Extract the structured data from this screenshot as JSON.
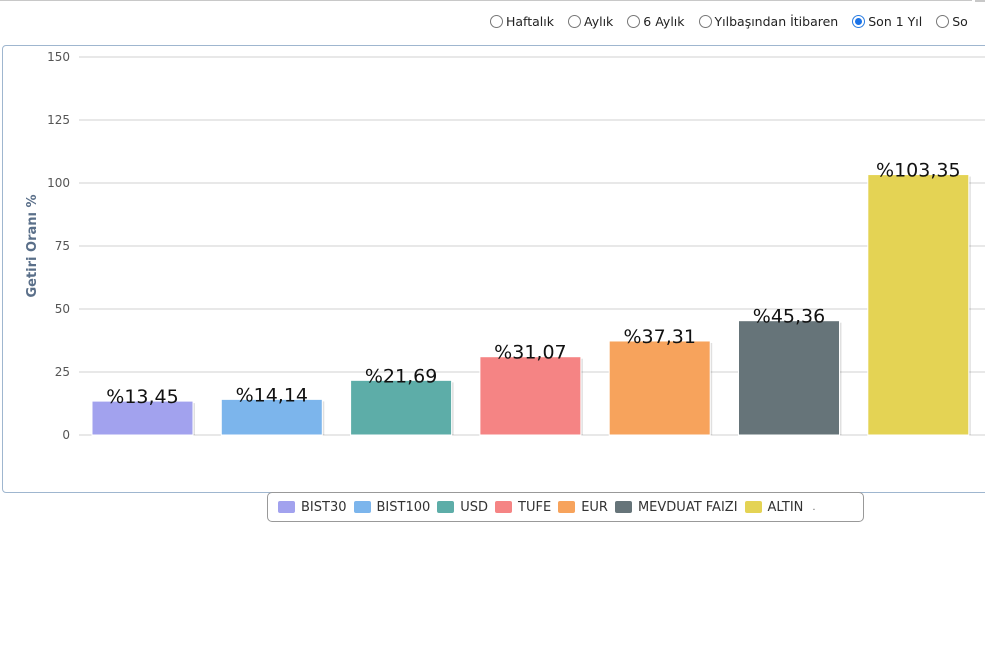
{
  "periods": [
    {
      "label": "Haftalık",
      "checked": false
    },
    {
      "label": "Aylık",
      "checked": false
    },
    {
      "label": "6 Aylık",
      "checked": false
    },
    {
      "label": "Yılbaşından İtibaren",
      "checked": false
    },
    {
      "label": "Son 1 Yıl",
      "checked": true
    },
    {
      "label": "So",
      "checked": false
    }
  ],
  "chart_data": {
    "type": "bar",
    "title": "",
    "xlabel": "",
    "ylabel": "Getiri Oranı %",
    "ylim": [
      0,
      150
    ],
    "yticks": [
      0,
      25,
      50,
      75,
      100,
      125,
      150
    ],
    "grid": true,
    "legend_position": "bottom",
    "categories": [
      "BIST30",
      "BIST100",
      "USD",
      "TUFE",
      "EUR",
      "MEVDUAT FAIZI",
      "ALTIN"
    ],
    "values": [
      13.45,
      14.14,
      21.69,
      31.07,
      37.31,
      45.36,
      103.35
    ],
    "data_labels": [
      "%13,45",
      "%14,14",
      "%21,69",
      "%31,07",
      "%37,31",
      "%45,36",
      "%103,35"
    ],
    "colors": [
      "#a2a2ee",
      "#7cb5ec",
      "#5dada8",
      "#f58484",
      "#f7a35c",
      "#667479",
      "#e4d354"
    ]
  },
  "legend_more": "."
}
